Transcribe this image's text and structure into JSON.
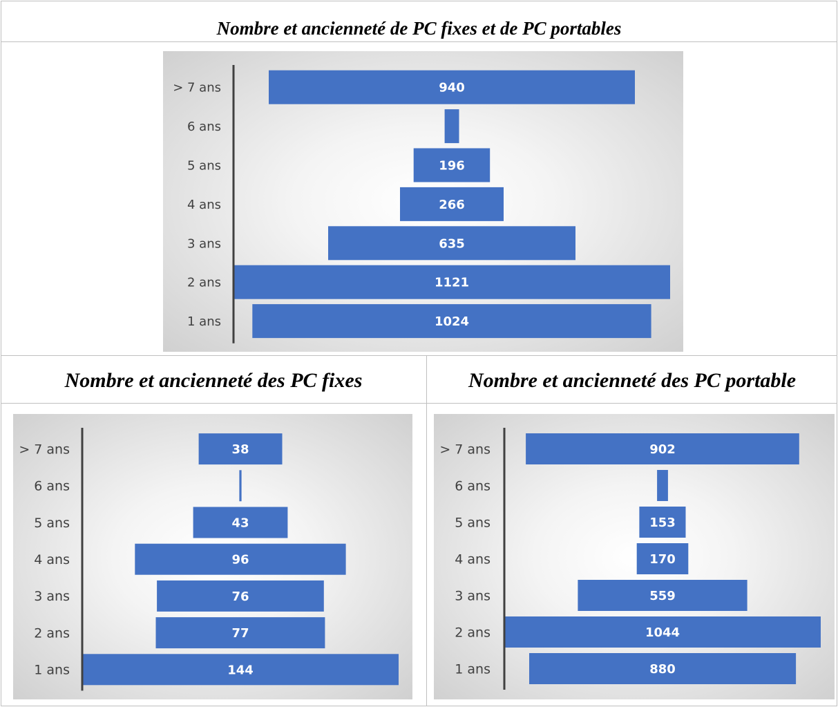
{
  "titles": {
    "main": "Nombre et ancienneté de PC fixes et de PC portables",
    "fixes": "Nombre et ancienneté des PC fixes",
    "portables": "Nombre et ancienneté des PC portable"
  },
  "colors": {
    "bar": "#4472c4",
    "axis": "#404040"
  },
  "chart_data": [
    {
      "id": "total",
      "type": "bar",
      "orientation": "horizontal-funnel",
      "title": "Nombre et ancienneté de PC fixes et de PC portables",
      "categories": [
        "> 7 ans",
        "6 ans",
        "5 ans",
        "4 ans",
        "3 ans",
        "2 ans",
        "1 ans"
      ],
      "values": [
        940,
        37,
        196,
        266,
        635,
        1121,
        1024
      ],
      "labels": [
        "940",
        "",
        "196",
        "266",
        "635",
        "1121",
        "1024"
      ],
      "max": 1121
    },
    {
      "id": "fixes",
      "type": "bar",
      "orientation": "horizontal-funnel",
      "title": "Nombre et ancienneté des PC fixes",
      "categories": [
        "> 7 ans",
        "6 ans",
        "5 ans",
        "4 ans",
        "3 ans",
        "2 ans",
        "1 ans"
      ],
      "values": [
        38,
        1,
        43,
        96,
        76,
        77,
        144
      ],
      "labels": [
        "38",
        "",
        "43",
        "96",
        "76",
        "77",
        "144"
      ],
      "max": 144
    },
    {
      "id": "portables",
      "type": "bar",
      "orientation": "horizontal-funnel",
      "title": "Nombre et ancienneté des PC portable",
      "categories": [
        "> 7 ans",
        "6 ans",
        "5 ans",
        "4 ans",
        "3 ans",
        "2 ans",
        "1 ans"
      ],
      "values": [
        902,
        36,
        153,
        170,
        559,
        1044,
        880
      ],
      "labels": [
        "902",
        "",
        "153",
        "170",
        "559",
        "1044",
        "880"
      ],
      "max": 1044
    }
  ]
}
